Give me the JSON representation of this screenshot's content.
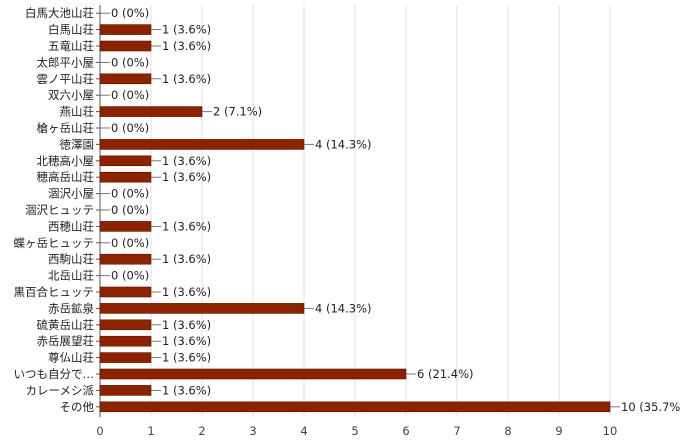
{
  "chart_data": {
    "type": "bar",
    "orientation": "horizontal",
    "categories": [
      "白馬大池山荘",
      "白馬山荘",
      "五竜山荘",
      "太郎平小屋",
      "雲ノ平山荘",
      "双六小屋",
      "燕山荘",
      "槍ヶ岳山荘",
      "徳澤園",
      "北穂高小屋",
      "穂高岳山荘",
      "涸沢小屋",
      "涸沢ヒュッテ",
      "西穂山荘",
      "蝶ヶ岳ヒュッテ",
      "西駒山荘",
      "北岳山荘",
      "黒百合ヒュッテ",
      "赤岳鉱泉",
      "硫黄岳山荘",
      "赤岳展望荘",
      "尊仏山荘",
      "いつも自分で…",
      "カレーメシ派",
      "その他"
    ],
    "values": [
      0,
      1,
      1,
      0,
      1,
      0,
      2,
      0,
      4,
      1,
      1,
      0,
      0,
      1,
      0,
      1,
      0,
      1,
      4,
      1,
      1,
      1,
      6,
      1,
      10
    ],
    "data_labels": [
      "0 (0%)",
      "1 (3.6%)",
      "1 (3.6%)",
      "0 (0%)",
      "1 (3.6%)",
      "0 (0%)",
      "2 (7.1%)",
      "0 (0%)",
      "4 (14.3%)",
      "1 (3.6%)",
      "1 (3.6%)",
      "0 (0%)",
      "0 (0%)",
      "1 (3.6%)",
      "0 (0%)",
      "1 (3.6%)",
      "0 (0%)",
      "1 (3.6%)",
      "4 (14.3%)",
      "1 (3.6%)",
      "1 (3.6%)",
      "1 (3.6%)",
      "6 (21.4%)",
      "1 (3.6%)",
      "10 (35.7%"
    ],
    "xlim": [
      0,
      10
    ],
    "xticks": [
      "0",
      "1",
      "2",
      "3",
      "4",
      "5",
      "6",
      "7",
      "8",
      "9",
      "10"
    ],
    "grid": true,
    "bar_color": "#8b2200"
  }
}
